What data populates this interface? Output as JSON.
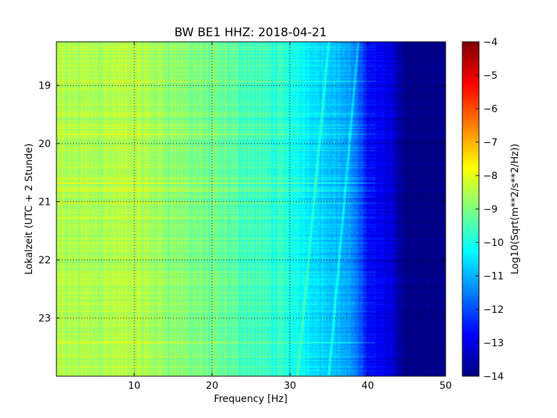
{
  "chart_data": {
    "type": "heatmap",
    "title": "BW BE1 HHZ: 2018-04-21",
    "xlabel": "Frequency [Hz]",
    "ylabel": "Lokalzeit (UTC + 2 Stunde)",
    "xlim": [
      0,
      50
    ],
    "ylim": [
      18.25,
      24.0
    ],
    "y_inverted": true,
    "grid": true,
    "x_ticks": [
      10,
      20,
      30,
      40,
      50
    ],
    "y_ticks": [
      19,
      20,
      21,
      22,
      23
    ],
    "colorbar": {
      "label": "Log10(Sqrt(m**2/s**2/Hz))",
      "range": [
        -14,
        -4
      ],
      "ticks": [
        -4,
        -5,
        -6,
        -7,
        -8,
        -9,
        -10,
        -11,
        -12,
        -13,
        -14
      ],
      "colormap": "jet"
    },
    "spectral_profile": {
      "frequency_hz": [
        0,
        10,
        20,
        28,
        30,
        33,
        36,
        38,
        40,
        43,
        45,
        50
      ],
      "log10_amplitude": [
        -8.6,
        -8.5,
        -9.2,
        -9.8,
        -10.0,
        -10.5,
        -10.9,
        -11.3,
        -12.6,
        -13.1,
        -14,
        -14
      ]
    },
    "tonal_lines": [
      {
        "start_hz": 35.0,
        "end_hz": 31.0
      },
      {
        "start_hz": 38.8,
        "end_hz": 35.0
      }
    ]
  }
}
